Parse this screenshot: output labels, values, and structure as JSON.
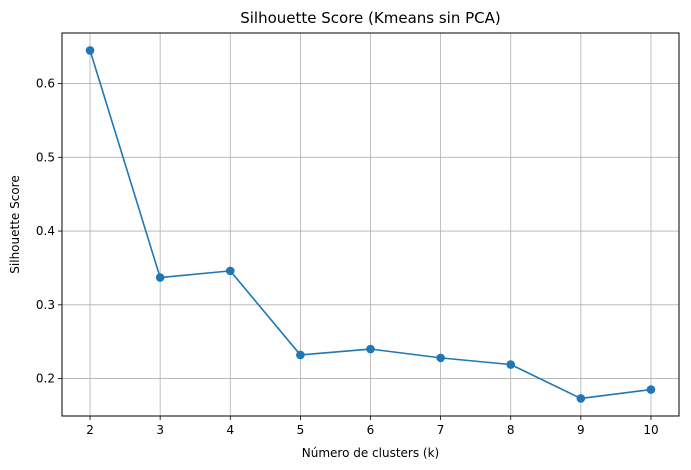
{
  "chart_data": {
    "type": "line",
    "title": "Silhouette Score (Kmeans sin PCA)",
    "xlabel": "Número de clusters (k)",
    "ylabel": "Silhouette Score",
    "x": [
      2,
      3,
      4,
      5,
      6,
      7,
      8,
      9,
      10
    ],
    "series": [
      {
        "values": [
          0.645,
          0.337,
          0.346,
          0.232,
          0.24,
          0.228,
          0.219,
          0.173,
          0.185
        ],
        "color": "#1f77b4",
        "marker": "circle"
      }
    ],
    "xticks": [
      "2",
      "3",
      "4",
      "5",
      "6",
      "7",
      "8",
      "9",
      "10"
    ],
    "yticks": [
      "0.2",
      "0.3",
      "0.4",
      "0.5",
      "0.6"
    ],
    "xlim": [
      1.6,
      10.4
    ],
    "ylim": [
      0.1492,
      0.6686
    ],
    "grid": true
  }
}
